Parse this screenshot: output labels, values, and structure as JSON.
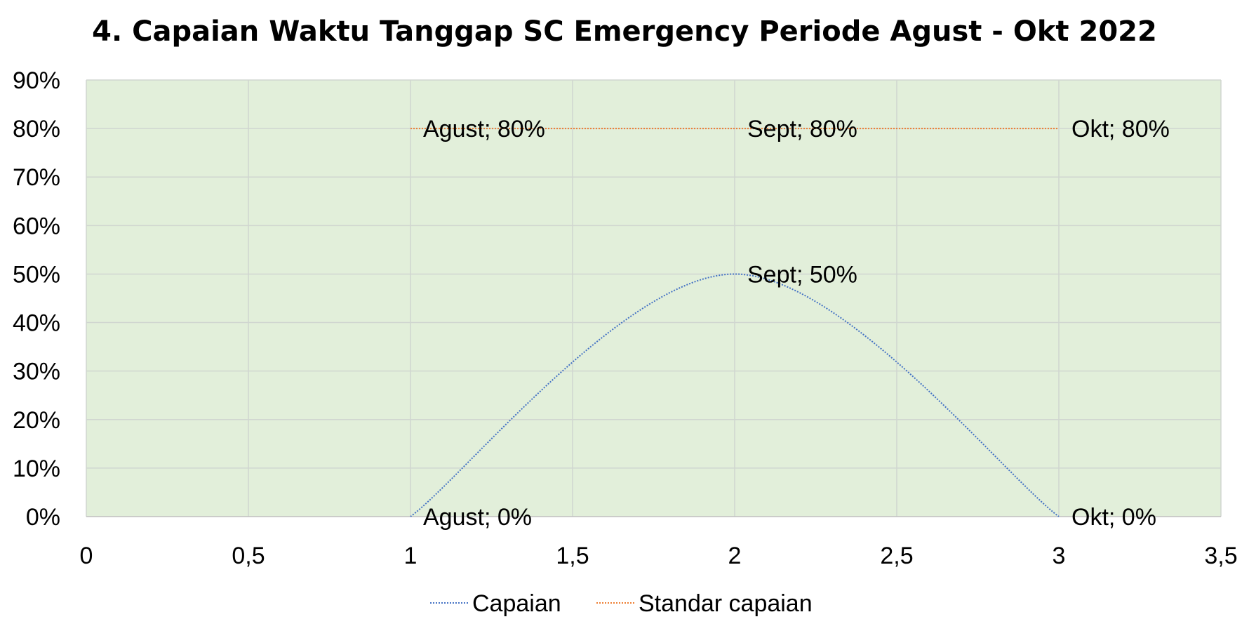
{
  "chart_data": {
    "type": "scatter",
    "title": "4. Capaian Waktu Tanggap SC Emergency Periode Agust - Okt 2022",
    "xlim": [
      0,
      3.5
    ],
    "ylim": [
      0,
      0.9
    ],
    "x_ticks": [
      "0",
      "0,5",
      "1",
      "1,5",
      "2",
      "2,5",
      "3",
      "3,5"
    ],
    "y_ticks": [
      "0%",
      "10%",
      "20%",
      "30%",
      "40%",
      "50%",
      "60%",
      "70%",
      "80%",
      "90%"
    ],
    "grid": true,
    "plot_background": "#e2efda",
    "legend_position": "bottom",
    "series": [
      {
        "name": "Capaian",
        "color": "#4472c4",
        "line_style": "dotted-smooth",
        "x": [
          1,
          2,
          3
        ],
        "y": [
          0,
          0.5,
          0
        ],
        "labels": [
          "Agust; 0%",
          "Sept; 50%",
          "Okt; 0%"
        ]
      },
      {
        "name": "Standar capaian",
        "color": "#ed7d31",
        "line_style": "dotted",
        "x": [
          1,
          2,
          3
        ],
        "y": [
          0.8,
          0.8,
          0.8
        ],
        "labels": [
          "Agust; 80%",
          "Sept; 80%",
          "Okt; 80%"
        ]
      }
    ]
  }
}
